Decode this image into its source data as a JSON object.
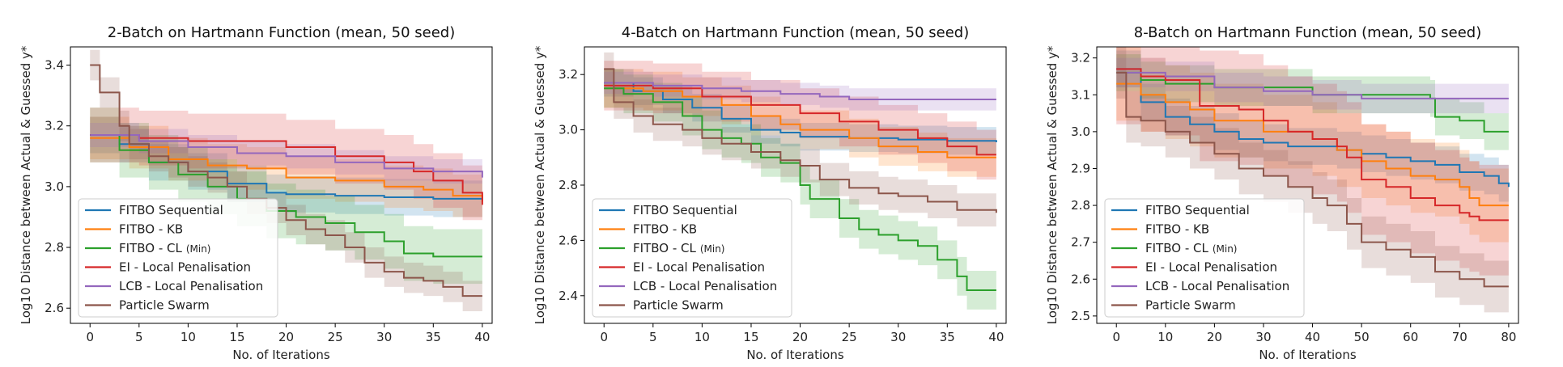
{
  "colors": {
    "FITBO Sequential": "#1f77b4",
    "FITBO - KB": "#ff7f0e",
    "FITBO - CL (Min)": "#2ca02c",
    "EI - Local Penalisation": "#d62728",
    "LCB - Local Penalisation": "#9467bd",
    "Particle Swarm": "#8c564b"
  },
  "legend_labels": [
    {
      "main": "FITBO Sequential",
      "small": ""
    },
    {
      "main": "FITBO - KB",
      "small": ""
    },
    {
      "main": "FITBO - CL",
      "small": "(Min)"
    },
    {
      "main": "EI - Local Penalisation",
      "small": ""
    },
    {
      "main": "LCB - Local Penalisation",
      "small": ""
    },
    {
      "main": "Particle Swarm",
      "small": ""
    }
  ],
  "chart_data": [
    {
      "type": "line",
      "title": "2-Batch on Hartmann Function (mean, 50 seed)",
      "xlabel": "No. of Iterations",
      "ylabel": "Log10 Distance between Actual & Guessed y*",
      "xlim": [
        -2,
        41
      ],
      "ylim": [
        2.55,
        3.46
      ],
      "xticks": [
        0,
        5,
        10,
        15,
        20,
        25,
        30,
        35,
        40
      ],
      "yticks": [
        2.6,
        2.8,
        3.0,
        3.2,
        3.4
      ],
      "ytick_labels": [
        "2.6",
        "2.8",
        "3.0",
        "3.2",
        "3.4"
      ],
      "legend_position": "lower left",
      "series": [
        {
          "name": "FITBO Sequential",
          "x": [
            0,
            3,
            6,
            10,
            14,
            18,
            20,
            25,
            30,
            35,
            40
          ],
          "y": [
            3.17,
            3.14,
            3.08,
            3.05,
            3.01,
            2.98,
            2.975,
            2.97,
            2.965,
            2.96,
            2.955
          ],
          "band": 0.06
        },
        {
          "name": "FITBO - KB",
          "x": [
            0,
            4,
            8,
            12,
            16,
            20,
            25,
            30,
            34,
            37,
            40
          ],
          "y": [
            3.16,
            3.13,
            3.09,
            3.07,
            3.06,
            3.03,
            3.02,
            3.0,
            2.99,
            2.97,
            2.95
          ],
          "band": 0.07
        },
        {
          "name": "FITBO - CL (Min)",
          "x": [
            0,
            3,
            6,
            9,
            12,
            15,
            18,
            21,
            24,
            27,
            30,
            32,
            35,
            40
          ],
          "y": [
            3.17,
            3.12,
            3.08,
            3.04,
            3.0,
            2.96,
            2.92,
            2.9,
            2.88,
            2.85,
            2.82,
            2.78,
            2.77,
            2.77
          ],
          "band": 0.09
        },
        {
          "name": "EI - Local Penalisation",
          "x": [
            0,
            5,
            10,
            15,
            20,
            25,
            30,
            33,
            35,
            38,
            40
          ],
          "y": [
            3.17,
            3.16,
            3.15,
            3.15,
            3.13,
            3.1,
            3.08,
            3.05,
            3.02,
            2.98,
            2.94
          ],
          "band": 0.09
        },
        {
          "name": "LCB - Local Penalisation",
          "x": [
            0,
            5,
            10,
            15,
            20,
            25,
            30,
            35,
            40
          ],
          "y": [
            3.17,
            3.15,
            3.13,
            3.11,
            3.1,
            3.08,
            3.06,
            3.05,
            3.03
          ],
          "band": 0.04
        },
        {
          "name": "Particle Swarm",
          "x": [
            0,
            1,
            2,
            3,
            4,
            6,
            8,
            10,
            12,
            14,
            16,
            18,
            20,
            22,
            24,
            26,
            28,
            30,
            32,
            34,
            36,
            38,
            40
          ],
          "y": [
            3.4,
            3.31,
            3.31,
            3.2,
            3.14,
            3.1,
            3.08,
            3.05,
            3.03,
            3.0,
            2.96,
            2.93,
            2.89,
            2.86,
            2.84,
            2.8,
            2.75,
            2.72,
            2.7,
            2.69,
            2.67,
            2.64,
            2.64
          ],
          "band": 0.05
        }
      ]
    },
    {
      "type": "line",
      "title": "4-Batch on Hartmann Function (mean, 50 seed)",
      "xlabel": "No. of Iterations",
      "ylabel": "Log10 Distance between Actual & Guessed y*",
      "xlim": [
        -2,
        41
      ],
      "ylim": [
        2.3,
        3.3
      ],
      "xticks": [
        0,
        5,
        10,
        15,
        20,
        25,
        30,
        35,
        40
      ],
      "yticks": [
        2.4,
        2.6,
        2.8,
        3.0,
        3.2
      ],
      "ytick_labels": [
        "2.4",
        "2.6",
        "2.8",
        "3.0",
        "3.2"
      ],
      "legend_position": "lower left",
      "series": [
        {
          "name": "FITBO Sequential",
          "x": [
            0,
            3,
            6,
            9,
            12,
            15,
            18,
            20,
            25,
            30,
            35,
            40
          ],
          "y": [
            3.17,
            3.14,
            3.11,
            3.08,
            3.04,
            3.0,
            2.99,
            2.975,
            2.97,
            2.965,
            2.96,
            2.955
          ],
          "band": 0.05
        },
        {
          "name": "FITBO - KB",
          "x": [
            0,
            4,
            8,
            12,
            15,
            18,
            20,
            25,
            28,
            32,
            35,
            40
          ],
          "y": [
            3.15,
            3.14,
            3.12,
            3.09,
            3.05,
            3.02,
            3.0,
            2.97,
            2.94,
            2.92,
            2.9,
            2.9
          ],
          "band": 0.07
        },
        {
          "name": "FITBO - CL (Min)",
          "x": [
            0,
            2,
            5,
            8,
            10,
            12,
            14,
            16,
            18,
            20,
            21,
            24,
            26,
            28,
            30,
            32,
            34,
            36,
            37,
            40
          ],
          "y": [
            3.15,
            3.13,
            3.1,
            3.05,
            3.0,
            2.97,
            2.95,
            2.9,
            2.88,
            2.8,
            2.75,
            2.68,
            2.64,
            2.62,
            2.6,
            2.58,
            2.53,
            2.47,
            2.42,
            2.42
          ],
          "band": 0.07
        },
        {
          "name": "EI - Local Penalisation",
          "x": [
            0,
            5,
            10,
            15,
            20,
            24,
            28,
            32,
            35,
            38,
            40
          ],
          "y": [
            3.16,
            3.15,
            3.12,
            3.09,
            3.06,
            3.03,
            3.0,
            2.97,
            2.94,
            2.91,
            2.91
          ],
          "band": 0.09
        },
        {
          "name": "LCB - Local Penalisation",
          "x": [
            0,
            5,
            10,
            14,
            18,
            22,
            25,
            30,
            35,
            40
          ],
          "y": [
            3.17,
            3.16,
            3.15,
            3.14,
            3.13,
            3.12,
            3.11,
            3.11,
            3.11,
            3.11
          ],
          "band": 0.04
        },
        {
          "name": "Particle Swarm",
          "x": [
            0,
            1,
            3,
            5,
            8,
            10,
            12,
            15,
            18,
            20,
            22,
            25,
            28,
            30,
            33,
            36,
            40
          ],
          "y": [
            3.22,
            3.1,
            3.05,
            3.02,
            3.0,
            2.97,
            2.95,
            2.92,
            2.89,
            2.87,
            2.82,
            2.79,
            2.77,
            2.76,
            2.74,
            2.71,
            2.7
          ],
          "band": 0.06
        }
      ]
    },
    {
      "type": "line",
      "title": "8-Batch on Hartmann Function (mean, 50 seed)",
      "xlabel": "No. of Iterations",
      "ylabel": "Log10 Distance between Actual & Guessed y*",
      "xlim": [
        -4,
        82
      ],
      "ylim": [
        2.48,
        3.23
      ],
      "xticks": [
        0,
        10,
        20,
        30,
        40,
        50,
        60,
        70,
        80
      ],
      "yticks": [
        2.5,
        2.6,
        2.7,
        2.8,
        2.9,
        3.0,
        3.1,
        3.2
      ],
      "ytick_labels": [
        "2.5",
        "2.6",
        "2.7",
        "2.8",
        "2.9",
        "3.0",
        "3.1",
        "3.2"
      ],
      "legend_position": "lower left",
      "series": [
        {
          "name": "FITBO Sequential",
          "x": [
            0,
            5,
            10,
            15,
            20,
            25,
            30,
            35,
            40,
            45,
            50,
            55,
            60,
            65,
            70,
            75,
            78,
            80
          ],
          "y": [
            3.17,
            3.08,
            3.04,
            3.02,
            3.0,
            2.98,
            2.97,
            2.96,
            2.96,
            2.95,
            2.94,
            2.93,
            2.92,
            2.91,
            2.89,
            2.88,
            2.86,
            2.85
          ],
          "band": 0.05
        },
        {
          "name": "FITBO - KB",
          "x": [
            0,
            5,
            10,
            15,
            20,
            30,
            40,
            45,
            50,
            55,
            60,
            65,
            70,
            72,
            74,
            80
          ],
          "y": [
            3.13,
            3.1,
            3.08,
            3.06,
            3.03,
            3.0,
            2.98,
            2.95,
            2.92,
            2.9,
            2.88,
            2.87,
            2.85,
            2.82,
            2.8,
            2.8
          ],
          "band": 0.1
        },
        {
          "name": "FITBO - CL (Min)",
          "x": [
            0,
            5,
            10,
            20,
            30,
            40,
            50,
            55,
            60,
            64,
            65,
            70,
            75,
            80
          ],
          "y": [
            3.16,
            3.14,
            3.13,
            3.12,
            3.12,
            3.1,
            3.1,
            3.1,
            3.1,
            3.09,
            3.04,
            3.03,
            3.0,
            3.0
          ],
          "band": 0.05
        },
        {
          "name": "EI - Local Penalisation",
          "x": [
            0,
            5,
            10,
            16,
            17,
            25,
            30,
            35,
            40,
            45,
            47,
            50,
            55,
            60,
            65,
            68,
            70,
            72,
            74,
            80
          ],
          "y": [
            3.17,
            3.15,
            3.14,
            3.14,
            3.07,
            3.06,
            3.03,
            3.0,
            2.98,
            2.96,
            2.93,
            2.87,
            2.85,
            2.82,
            2.8,
            2.8,
            2.78,
            2.77,
            2.76,
            2.76
          ],
          "band": 0.15
        },
        {
          "name": "LCB - Local Penalisation",
          "x": [
            0,
            5,
            10,
            20,
            30,
            40,
            50,
            60,
            70,
            80
          ],
          "y": [
            3.16,
            3.16,
            3.15,
            3.12,
            3.11,
            3.1,
            3.09,
            3.09,
            3.09,
            3.09
          ],
          "band": 0.04
        },
        {
          "name": "Particle Swarm",
          "x": [
            0,
            2,
            5,
            10,
            15,
            20,
            25,
            30,
            35,
            40,
            43,
            47,
            50,
            55,
            60,
            65,
            70,
            75,
            80
          ],
          "y": [
            3.16,
            3.04,
            3.03,
            3.0,
            2.97,
            2.94,
            2.9,
            2.88,
            2.85,
            2.82,
            2.8,
            2.75,
            2.7,
            2.68,
            2.66,
            2.62,
            2.6,
            2.58,
            2.58
          ],
          "band": 0.07
        }
      ]
    }
  ]
}
